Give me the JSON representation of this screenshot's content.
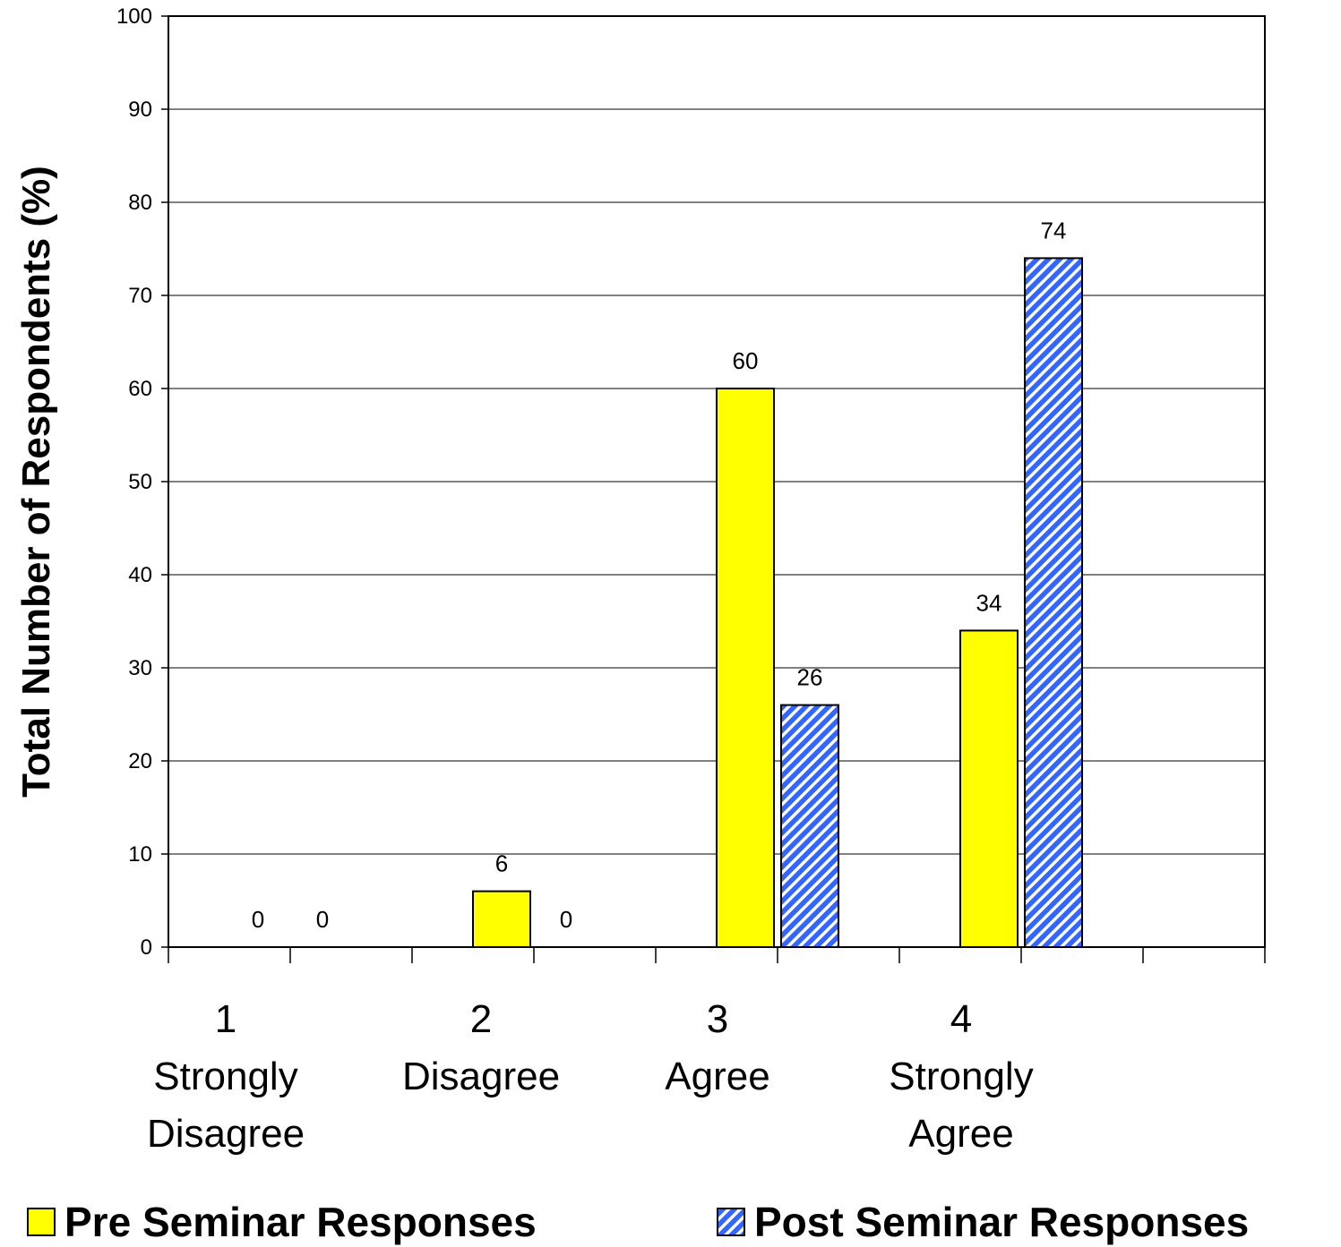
{
  "chart_data": {
    "type": "bar",
    "categories": [
      [
        "1",
        "Strongly",
        "Disagree"
      ],
      [
        "2",
        "Disagree"
      ],
      [
        "3",
        "Agree"
      ],
      [
        "4",
        "Strongly",
        "Agree"
      ]
    ],
    "series": [
      {
        "name": "Pre Seminar Responses",
        "values": [
          0,
          6,
          60,
          34
        ],
        "color": "#ffff00",
        "pattern": "solid"
      },
      {
        "name": "Post Seminar Responses",
        "values": [
          0,
          0,
          26,
          74
        ],
        "color": "#3366ff",
        "pattern": "diagonal-stripes"
      }
    ],
    "data_labels": [
      [
        "0",
        "6",
        "60",
        "34"
      ],
      [
        "0",
        "0",
        "26",
        "74"
      ]
    ],
    "ylabel": "Total Number of Respondents (%)",
    "xlabel": "",
    "ylim": [
      0,
      100
    ],
    "yticks": [
      "0",
      "10",
      "20",
      "30",
      "40",
      "50",
      "60",
      "70",
      "80",
      "90",
      "100"
    ],
    "grid": true,
    "legend_position": "bottom"
  },
  "legend": {
    "pre_label": "Pre Seminar Responses",
    "post_label": "Post Seminar Responses"
  }
}
